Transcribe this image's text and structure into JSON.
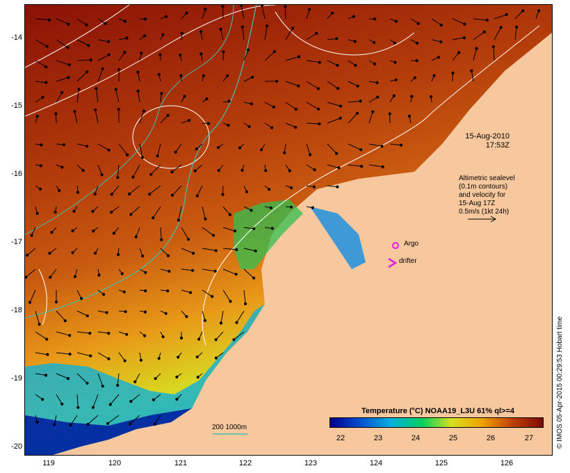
{
  "map": {
    "x_ticks": [
      "119",
      "120",
      "121",
      "122",
      "123",
      "124",
      "125",
      "126"
    ],
    "y_ticks": [
      "-14",
      "-15",
      "-16",
      "-17",
      "-18",
      "-19",
      "-20"
    ],
    "timestamp_line1": "15-Aug-2010",
    "timestamp_line2": "17:53Z",
    "velocity_note": [
      "Altimetric sealevel",
      "(0.1m contours)",
      "and velocity for",
      "15-Aug 17Z",
      "0.5m/s (1kt 24h)"
    ],
    "argo_label": "Argo",
    "drifter_label": "drifter",
    "depth_label": "200  1000m",
    "credit": "© IMOS 05-Apr-2015 00:29:53 Hobart time",
    "colors": {
      "land": "#f7c79e",
      "argo": "#e020e0",
      "drifter": "#e020e0",
      "contour_200": "#40c0b0",
      "sealevel_contour": "#ffffff"
    }
  },
  "colorbar": {
    "title": "Temperature (°C) NOAA19_L3U 61% ql>=4",
    "ticks": [
      "22",
      "23",
      "24",
      "25",
      "26",
      "27"
    ],
    "colors": [
      "#00008b",
      "#0050d0",
      "#00b0e0",
      "#00d060",
      "#d8e020",
      "#f0a000",
      "#c04000",
      "#7a0a05"
    ]
  }
}
